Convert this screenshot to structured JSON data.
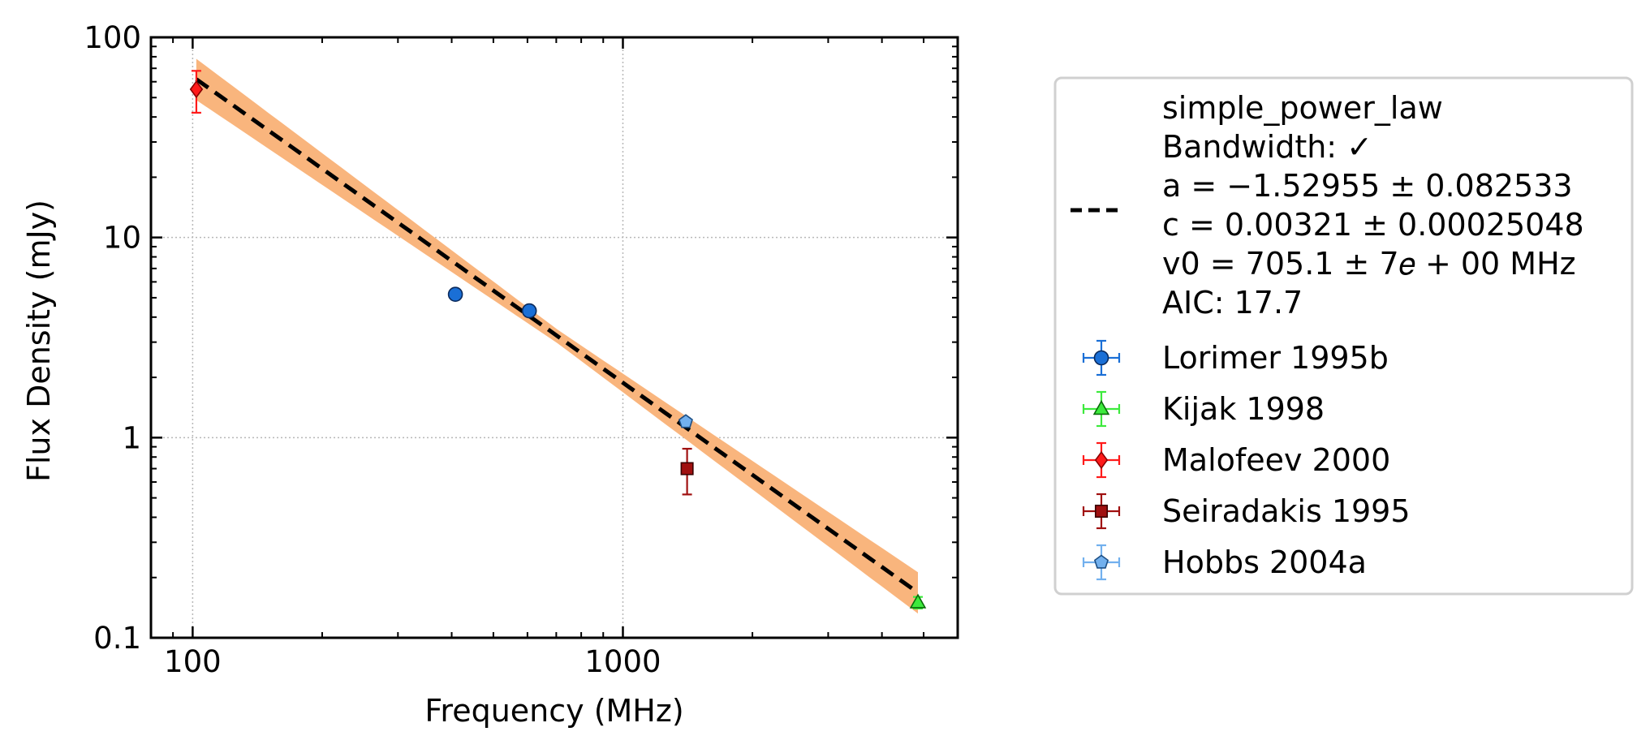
{
  "chart_data": {
    "type": "scatter",
    "xlabel": "Frequency (MHz)",
    "ylabel": "Flux Density (mJy)",
    "xscale": "log",
    "yscale": "log",
    "xlim": [
      80,
      6000
    ],
    "ylim": [
      0.1,
      100
    ],
    "xticks": [
      {
        "value": 100,
        "label": "100"
      },
      {
        "value": 1000,
        "label": "1000"
      }
    ],
    "yticks": [
      {
        "value": 0.1,
        "label": "0.1"
      },
      {
        "value": 1,
        "label": "1"
      },
      {
        "value": 10,
        "label": "10"
      },
      {
        "value": 100,
        "label": "100"
      }
    ],
    "grid": true,
    "legend_position": "outside-right",
    "fit": {
      "model": "simple_power_law",
      "color": "#000000",
      "band_color": "#f9b57d",
      "a": -1.52955,
      "c": 0.00321,
      "v0": 705.1,
      "x_range": [
        102,
        4850
      ],
      "legend_lines": [
        "simple_power_law",
        "Bandwidth: ✓",
        "a = −1.52955 ± 0.082533",
        "c = 0.00321 ± 0.00025048",
        "v0 = 705.1 ± 7𝑒 + 00 MHz",
        "AIC: 17.7"
      ]
    },
    "series": [
      {
        "name": "Lorimer 1995b",
        "marker": "circle",
        "color": "#1a6fd6",
        "edge": "#0b2a5c",
        "points": [
          {
            "x": 408,
            "y": 5.2,
            "yerr": 0.3
          },
          {
            "x": 606,
            "y": 4.3,
            "yerr": 0.25
          }
        ]
      },
      {
        "name": "Kijak 1998",
        "marker": "triangle",
        "color": "#3dea3d",
        "edge": "#0a6a0a",
        "points": [
          {
            "x": 4850,
            "y": 0.15,
            "yerr": 0.01
          }
        ]
      },
      {
        "name": "Malofeev 2000",
        "marker": "diamond",
        "color": "#ff1a1a",
        "edge": "#8a0000",
        "points": [
          {
            "x": 102,
            "y": 55,
            "yerr": 13
          }
        ]
      },
      {
        "name": "Seiradakis 1995",
        "marker": "square",
        "color": "#a01010",
        "edge": "#3a0000",
        "points": [
          {
            "x": 1410,
            "y": 0.7,
            "yerr": 0.18
          }
        ]
      },
      {
        "name": "Hobbs 2004a",
        "marker": "pentagon",
        "color": "#72b0ee",
        "edge": "#1d4f85",
        "points": [
          {
            "x": 1400,
            "y": 1.2,
            "yerr": 0.05
          }
        ]
      }
    ]
  }
}
